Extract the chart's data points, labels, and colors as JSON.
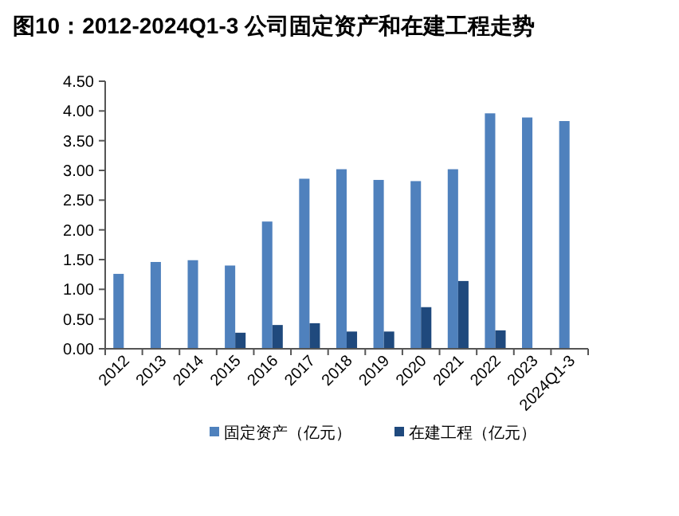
{
  "chart_data": {
    "type": "bar",
    "title": "图10：2012-2024Q1-3 公司固定资产和在建工程走势",
    "categories": [
      "2012",
      "2013",
      "2014",
      "2015",
      "2016",
      "2017",
      "2018",
      "2019",
      "2020",
      "2021",
      "2022",
      "2023",
      "2024Q1-3"
    ],
    "series": [
      {
        "name": "固定资产（亿元）",
        "color": "#4f81bd",
        "values": [
          1.26,
          1.46,
          1.49,
          1.4,
          2.14,
          2.86,
          3.02,
          2.84,
          2.82,
          3.02,
          3.96,
          3.89,
          3.83
        ]
      },
      {
        "name": "在建工程（亿元）",
        "color": "#1f497d",
        "values": [
          0.01,
          0,
          0.01,
          0.27,
          0.4,
          0.43,
          0.29,
          0.29,
          0.7,
          1.14,
          0.31,
          0.01,
          null
        ]
      }
    ],
    "ylim": [
      0,
      4.5
    ],
    "yticks": [
      {
        "value": 0,
        "label": "0.00"
      },
      {
        "value": 0.5,
        "label": "0.50"
      },
      {
        "value": 1,
        "label": "1.00"
      },
      {
        "value": 1.5,
        "label": "1.50"
      },
      {
        "value": 2,
        "label": "2.00"
      },
      {
        "value": 2.5,
        "label": "2.50"
      },
      {
        "value": 3,
        "label": "3.00"
      },
      {
        "value": 3.5,
        "label": "3.50"
      },
      {
        "value": 4,
        "label": "4.00"
      },
      {
        "value": 4.5,
        "label": "4.50"
      }
    ],
    "grid": false,
    "legend": "bottom"
  }
}
